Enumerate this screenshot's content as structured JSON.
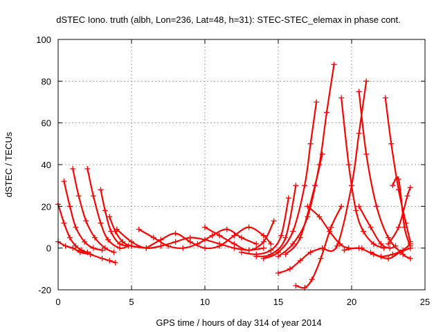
{
  "chart_data": {
    "type": "scatter",
    "title": "dSTEC Iono. truth (albh, Lon=236, Lat=48, h=31): STEC-STEC_elemax in phase cont.",
    "xlabel": "GPS time / hours of day 314 of year 2014",
    "ylabel": "dSTEC  / TECUs",
    "xlim": [
      0,
      25
    ],
    "ylim": [
      -20,
      100
    ],
    "xticks": [
      0,
      5,
      10,
      15,
      20,
      25
    ],
    "yticks": [
      -20,
      0,
      20,
      40,
      60,
      80,
      100
    ],
    "xtick_labels": [
      "0",
      "5",
      "10",
      "15",
      "20",
      "25"
    ],
    "ytick_labels": [
      "-20",
      "0",
      "20",
      "40",
      "60",
      "80",
      "100"
    ],
    "grid": true,
    "legend": "none",
    "marker": "plus",
    "color": "#ff0000",
    "series": [
      {
        "x": [
          0.0,
          0.4,
          0.8,
          1.2,
          1.6,
          2.0
        ],
        "y": [
          21,
          12,
          5,
          1,
          -1,
          -2
        ]
      },
      {
        "x": [
          0.0,
          0.5,
          1.0,
          1.5,
          2.2
        ],
        "y": [
          3,
          1,
          0,
          -2,
          -3
        ]
      },
      {
        "x": [
          0.4,
          0.8,
          1.2,
          1.8,
          2.4,
          3.0
        ],
        "y": [
          32,
          20,
          10,
          3,
          0,
          -1
        ]
      },
      {
        "x": [
          1.0,
          1.4,
          1.9,
          2.5,
          3.2,
          3.8
        ],
        "y": [
          38,
          25,
          13,
          5,
          0,
          -2
        ]
      },
      {
        "x": [
          2.0,
          2.4,
          2.9,
          3.4,
          4.2,
          4.8
        ],
        "y": [
          38,
          25,
          12,
          4,
          0,
          1
        ]
      },
      {
        "x": [
          2.9,
          3.2,
          3.6,
          4.2,
          5.0,
          6.0
        ],
        "y": [
          28,
          18,
          8,
          2,
          1,
          0
        ]
      },
      {
        "x": [
          3.5,
          3.9,
          4.4,
          5.0,
          6.0
        ],
        "y": [
          15,
          8,
          3,
          1,
          0
        ]
      },
      {
        "x": [
          1.5,
          2.2,
          3.0,
          3.5,
          3.9
        ],
        "y": [
          -1,
          -3,
          -5,
          -6,
          -7
        ]
      },
      {
        "x": [
          4.0,
          5.0,
          6.0,
          7.0,
          8.0,
          9.0,
          10.0,
          11.0,
          12.0,
          13.0,
          14.0
        ],
        "y": [
          9,
          3,
          0,
          1,
          3,
          5,
          4,
          2,
          0,
          -1,
          0
        ]
      },
      {
        "x": [
          5.5,
          6.5,
          7.5,
          8.5,
          9.5,
          10.5,
          11.5,
          12.5,
          13.5
        ],
        "y": [
          9,
          5,
          1,
          0,
          2,
          6,
          9,
          5,
          2
        ]
      },
      {
        "x": [
          6.0,
          7.0,
          8.0,
          9.0,
          10.0,
          11.0,
          12.0,
          13.0,
          14.0,
          14.5
        ],
        "y": [
          0,
          4,
          7,
          3,
          0,
          1,
          6,
          10,
          6,
          2
        ]
      },
      {
        "x": [
          10.0,
          11.0,
          12.0,
          13.0,
          14.0,
          14.7
        ],
        "y": [
          10,
          6,
          2,
          -1,
          3,
          13
        ]
      },
      {
        "x": [
          12.5,
          13.5,
          14.5,
          15.2,
          15.7
        ],
        "y": [
          -2,
          -3,
          -1,
          6,
          24
        ]
      },
      {
        "x": [
          13.5,
          14.5,
          15.5,
          16.2
        ],
        "y": [
          -4,
          -3,
          5,
          30
        ]
      },
      {
        "x": [
          14.0,
          15.0,
          16.0,
          16.8,
          17.2,
          17.6
        ],
        "y": [
          -5,
          -2,
          8,
          30,
          50,
          70
        ]
      },
      {
        "x": [
          15.0,
          16.0,
          17.0,
          17.8,
          18.3,
          18.8
        ],
        "y": [
          -4,
          2,
          15,
          40,
          65,
          88
        ]
      },
      {
        "x": [
          15.5,
          16.5,
          17.5,
          18.0
        ],
        "y": [
          -3,
          5,
          30,
          45
        ]
      },
      {
        "x": [
          15.0,
          15.8,
          16.5,
          17.2,
          18.0
        ],
        "y": [
          -12,
          -10,
          -6,
          -2,
          0
        ]
      },
      {
        "x": [
          16.2,
          16.8,
          17.3,
          17.9,
          18.6,
          19.3
        ],
        "y": [
          -18,
          -19,
          -15,
          -5,
          10,
          20
        ]
      },
      {
        "x": [
          17.0,
          17.8,
          18.5,
          19.2,
          19.8,
          20.7
        ],
        "y": [
          20,
          15,
          8,
          2,
          0,
          0
        ]
      },
      {
        "x": [
          18.0,
          19.0,
          20.0,
          20.5,
          21.0
        ],
        "y": [
          0,
          1,
          30,
          55,
          80
        ]
      },
      {
        "x": [
          19.3,
          19.8,
          20.3,
          20.8,
          21.5,
          22.2
        ],
        "y": [
          72,
          40,
          18,
          8,
          2,
          0
        ]
      },
      {
        "x": [
          19.5,
          20.5,
          21.5,
          22.5,
          23.3,
          24.0
        ],
        "y": [
          -1,
          0,
          -3,
          -5,
          -2,
          0
        ]
      },
      {
        "x": [
          20.5,
          21.0,
          21.7,
          22.5,
          23.5,
          24.0
        ],
        "y": [
          75,
          45,
          20,
          5,
          -3,
          -5
        ]
      },
      {
        "x": [
          21.3,
          22.0,
          22.8,
          23.5,
          24.0
        ],
        "y": [
          -2,
          -4,
          -3,
          -1,
          2
        ]
      },
      {
        "x": [
          22.3,
          22.7,
          23.2,
          23.7,
          24.0
        ],
        "y": [
          72,
          50,
          28,
          12,
          3
        ]
      },
      {
        "x": [
          22.5,
          23.2,
          23.8,
          24.0
        ],
        "y": [
          2,
          10,
          25,
          29
        ]
      },
      {
        "x": [
          22.8,
          23.2,
          23.6,
          24.0
        ],
        "y": [
          30,
          33,
          10,
          1
        ]
      },
      {
        "x": [
          20.5,
          21.3,
          22.0,
          22.6,
          23.0
        ],
        "y": [
          20,
          10,
          2,
          0,
          1
        ]
      }
    ]
  }
}
